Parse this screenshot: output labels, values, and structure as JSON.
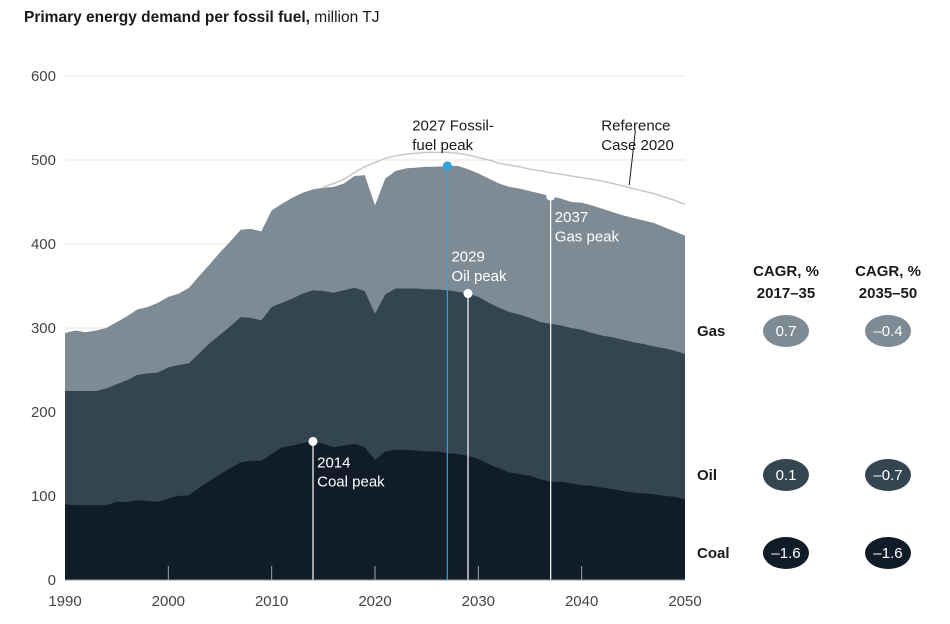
{
  "title": {
    "bold": "Primary energy demand per fossil fuel,",
    "unit": " million TJ"
  },
  "chart_data": {
    "type": "area",
    "stacked": true,
    "title": "Primary energy demand per fossil fuel, million TJ",
    "xlabel": "",
    "ylabel": "",
    "xlim": [
      1990,
      2050
    ],
    "ylim": [
      0,
      600
    ],
    "x_ticks": [
      1990,
      2000,
      2010,
      2020,
      2030,
      2040,
      2050
    ],
    "y_ticks": [
      0,
      100,
      200,
      300,
      400,
      500,
      600
    ],
    "grid": true,
    "series": [
      {
        "name": "Coal",
        "color": "#101c28",
        "cumulative": [
          [
            1990,
            90
          ],
          [
            1991,
            89
          ],
          [
            1992,
            89
          ],
          [
            1993,
            89
          ],
          [
            1994,
            89
          ],
          [
            1995,
            93
          ],
          [
            1996,
            93
          ],
          [
            1997,
            95
          ],
          [
            1998,
            94
          ],
          [
            1999,
            93
          ],
          [
            2000,
            97
          ],
          [
            2001,
            100
          ],
          [
            2002,
            101
          ],
          [
            2003,
            110
          ],
          [
            2004,
            118
          ],
          [
            2005,
            126
          ],
          [
            2006,
            133
          ],
          [
            2007,
            140
          ],
          [
            2008,
            142
          ],
          [
            2009,
            142
          ],
          [
            2010,
            150
          ],
          [
            2011,
            158
          ],
          [
            2012,
            160
          ],
          [
            2013,
            163
          ],
          [
            2014,
            165
          ],
          [
            2015,
            162
          ],
          [
            2016,
            158
          ],
          [
            2017,
            160
          ],
          [
            2018,
            162
          ],
          [
            2019,
            158
          ],
          [
            2020,
            143
          ],
          [
            2021,
            153
          ],
          [
            2022,
            155
          ],
          [
            2023,
            155
          ],
          [
            2024,
            154
          ],
          [
            2025,
            153
          ],
          [
            2026,
            153
          ],
          [
            2027,
            151
          ],
          [
            2028,
            150
          ],
          [
            2029,
            148
          ],
          [
            2030,
            144
          ],
          [
            2031,
            138
          ],
          [
            2032,
            133
          ],
          [
            2033,
            128
          ],
          [
            2034,
            126
          ],
          [
            2035,
            124
          ],
          [
            2036,
            120
          ],
          [
            2037,
            117
          ],
          [
            2038,
            117
          ],
          [
            2039,
            115
          ],
          [
            2040,
            113
          ],
          [
            2041,
            112
          ],
          [
            2042,
            110
          ],
          [
            2043,
            108
          ],
          [
            2044,
            106
          ],
          [
            2045,
            104
          ],
          [
            2046,
            103
          ],
          [
            2047,
            102
          ],
          [
            2048,
            100
          ],
          [
            2049,
            99
          ],
          [
            2050,
            96
          ]
        ]
      },
      {
        "name": "Oil",
        "color": "#324550",
        "cumulative": [
          [
            1990,
            225
          ],
          [
            1991,
            225
          ],
          [
            1992,
            225
          ],
          [
            1993,
            225
          ],
          [
            1994,
            228
          ],
          [
            1995,
            233
          ],
          [
            1996,
            238
          ],
          [
            1997,
            244
          ],
          [
            1998,
            246
          ],
          [
            1999,
            247
          ],
          [
            2000,
            253
          ],
          [
            2001,
            256
          ],
          [
            2002,
            258
          ],
          [
            2003,
            270
          ],
          [
            2004,
            282
          ],
          [
            2005,
            292
          ],
          [
            2006,
            302
          ],
          [
            2007,
            313
          ],
          [
            2008,
            312
          ],
          [
            2009,
            309
          ],
          [
            2010,
            325
          ],
          [
            2011,
            330
          ],
          [
            2012,
            335
          ],
          [
            2013,
            341
          ],
          [
            2014,
            345
          ],
          [
            2015,
            344
          ],
          [
            2016,
            342
          ],
          [
            2017,
            345
          ],
          [
            2018,
            348
          ],
          [
            2019,
            344
          ],
          [
            2020,
            317
          ],
          [
            2021,
            340
          ],
          [
            2022,
            347
          ],
          [
            2023,
            347
          ],
          [
            2024,
            347
          ],
          [
            2025,
            346
          ],
          [
            2026,
            346
          ],
          [
            2027,
            345
          ],
          [
            2028,
            343
          ],
          [
            2029,
            341
          ],
          [
            2030,
            337
          ],
          [
            2031,
            330
          ],
          [
            2032,
            324
          ],
          [
            2033,
            319
          ],
          [
            2034,
            316
          ],
          [
            2035,
            312
          ],
          [
            2036,
            307
          ],
          [
            2037,
            305
          ],
          [
            2038,
            303
          ],
          [
            2039,
            300
          ],
          [
            2040,
            298
          ],
          [
            2041,
            294
          ],
          [
            2042,
            291
          ],
          [
            2043,
            289
          ],
          [
            2044,
            286
          ],
          [
            2045,
            283
          ],
          [
            2046,
            281
          ],
          [
            2047,
            278
          ],
          [
            2048,
            276
          ],
          [
            2049,
            273
          ],
          [
            2050,
            269
          ]
        ]
      },
      {
        "name": "Gas",
        "color": "#7e8b94",
        "cumulative": [
          [
            1990,
            294
          ],
          [
            1991,
            297
          ],
          [
            1992,
            295
          ],
          [
            1993,
            297
          ],
          [
            1994,
            300
          ],
          [
            1995,
            307
          ],
          [
            1996,
            314
          ],
          [
            1997,
            322
          ],
          [
            1998,
            325
          ],
          [
            1999,
            330
          ],
          [
            2000,
            337
          ],
          [
            2001,
            341
          ],
          [
            2002,
            348
          ],
          [
            2003,
            362
          ],
          [
            2004,
            376
          ],
          [
            2005,
            390
          ],
          [
            2006,
            403
          ],
          [
            2007,
            417
          ],
          [
            2008,
            418
          ],
          [
            2009,
            415
          ],
          [
            2010,
            440
          ],
          [
            2011,
            448
          ],
          [
            2012,
            455
          ],
          [
            2013,
            461
          ],
          [
            2014,
            465
          ],
          [
            2015,
            467
          ],
          [
            2016,
            468
          ],
          [
            2017,
            472
          ],
          [
            2018,
            481
          ],
          [
            2019,
            482
          ],
          [
            2020,
            446
          ],
          [
            2021,
            478
          ],
          [
            2022,
            487
          ],
          [
            2023,
            490
          ],
          [
            2024,
            491
          ],
          [
            2025,
            492
          ],
          [
            2026,
            492
          ],
          [
            2027,
            493
          ],
          [
            2028,
            493
          ],
          [
            2029,
            489
          ],
          [
            2030,
            484
          ],
          [
            2031,
            478
          ],
          [
            2032,
            472
          ],
          [
            2033,
            468
          ],
          [
            2034,
            466
          ],
          [
            2035,
            463
          ],
          [
            2036,
            460
          ],
          [
            2037,
            457
          ],
          [
            2038,
            454
          ],
          [
            2039,
            450
          ],
          [
            2040,
            449
          ],
          [
            2041,
            446
          ],
          [
            2042,
            442
          ],
          [
            2043,
            438
          ],
          [
            2044,
            434
          ],
          [
            2045,
            431
          ],
          [
            2046,
            428
          ],
          [
            2047,
            425
          ],
          [
            2048,
            420
          ],
          [
            2049,
            415
          ],
          [
            2050,
            410
          ]
        ]
      }
    ],
    "reference_line": {
      "label": [
        "Reference",
        "Case 2020"
      ],
      "color": "#c8c8c8",
      "points": [
        [
          2015,
          468
        ],
        [
          2016,
          472
        ],
        [
          2017,
          477
        ],
        [
          2018,
          485
        ],
        [
          2019,
          492
        ],
        [
          2020,
          497
        ],
        [
          2021,
          502
        ],
        [
          2022,
          505
        ],
        [
          2023,
          507
        ],
        [
          2024,
          508
        ],
        [
          2025,
          509
        ],
        [
          2026,
          509
        ],
        [
          2027,
          509
        ],
        [
          2028,
          508
        ],
        [
          2029,
          506
        ],
        [
          2030,
          503
        ],
        [
          2031,
          500
        ],
        [
          2032,
          496
        ],
        [
          2033,
          494
        ],
        [
          2034,
          492
        ],
        [
          2035,
          489
        ],
        [
          2036,
          487
        ],
        [
          2037,
          485
        ],
        [
          2038,
          483
        ],
        [
          2039,
          481
        ],
        [
          2040,
          479
        ],
        [
          2041,
          477
        ],
        [
          2042,
          475
        ],
        [
          2043,
          472
        ],
        [
          2044,
          469
        ],
        [
          2045,
          466
        ],
        [
          2046,
          463
        ],
        [
          2047,
          460
        ],
        [
          2048,
          456
        ],
        [
          2049,
          452
        ],
        [
          2050,
          447
        ]
      ]
    },
    "annotations": [
      {
        "id": "coal-peak",
        "x": 2014,
        "y": 165,
        "line_to_y": 0,
        "color": "#ffffff",
        "lines": [
          "2014",
          "Coal peak"
        ],
        "text_color": "#ffffff",
        "text_x": 2014.4,
        "text_y1": 140,
        "text_y2": 117
      },
      {
        "id": "oil-peak",
        "x": 2029,
        "y": 341,
        "line_to_y": 0,
        "color": "#ffffff",
        "lines": [
          "2029",
          "Oil peak"
        ],
        "text_color": "#ffffff",
        "text_x": 2027.4,
        "text_y1": 385,
        "text_y2": 362
      },
      {
        "id": "gas-peak",
        "x": 2037,
        "y": 457,
        "line_to_y": 0,
        "color": "#ffffff",
        "lines": [
          "2037",
          "Gas peak"
        ],
        "text_color": "#ffffff",
        "text_x": 2037.4,
        "text_y1": 432,
        "text_y2": 409
      },
      {
        "id": "fossil-fuel-peak",
        "x": 2027,
        "y": 493,
        "line_to_y": 0,
        "color": "#2ea3dc",
        "lines": [
          "2027 Fossil-",
          "fuel peak"
        ],
        "text_color": "#1a1a1a",
        "text_x": 2023.6,
        "text_y1": 541,
        "text_y2": 518
      }
    ]
  },
  "cagr": {
    "headers": [
      {
        "line1": "CAGR, %",
        "line2": "2017–35"
      },
      {
        "line1": "CAGR, %",
        "line2": "2035–50"
      }
    ],
    "rows": [
      {
        "fuel": "Gas",
        "color": "#7e8b94",
        "values": [
          "0.7",
          "–0.4"
        ]
      },
      {
        "fuel": "Oil",
        "color": "#324550",
        "values": [
          "0.1",
          "–0.7"
        ]
      },
      {
        "fuel": "Coal",
        "color": "#101c28",
        "values": [
          "–1.6",
          "–1.6"
        ]
      }
    ]
  }
}
